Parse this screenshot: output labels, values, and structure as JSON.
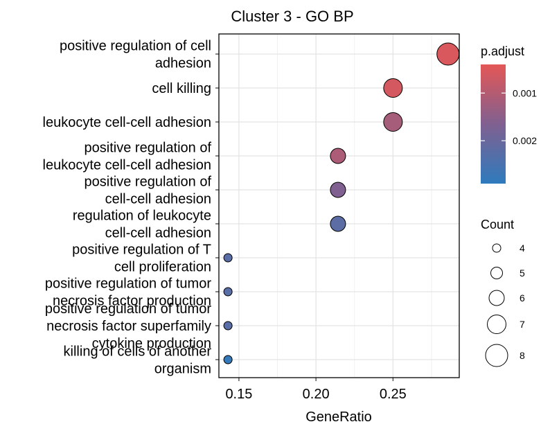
{
  "chart_data": {
    "type": "scatter",
    "title": "Cluster 3 - GO BP",
    "xlabel": "GeneRatio",
    "ylabel": "",
    "xlim": [
      0.137,
      0.293
    ],
    "xticks": [
      {
        "value": 0.15,
        "label": "0.15"
      },
      {
        "value": 0.2,
        "label": "0.20"
      },
      {
        "value": 0.25,
        "label": "0.25"
      }
    ],
    "grid": true,
    "points": [
      {
        "term": [
          "positive regulation of cell",
          "adhesion"
        ],
        "gene_ratio": 0.2857,
        "count": 8,
        "p_adjust": 0.00055
      },
      {
        "term": [
          "cell killing"
        ],
        "gene_ratio": 0.25,
        "count": 7,
        "p_adjust": 0.0006
      },
      {
        "term": [
          "leukocyte cell-cell adhesion"
        ],
        "gene_ratio": 0.25,
        "count": 7,
        "p_adjust": 0.00118
      },
      {
        "term": [
          "positive regulation of",
          "leukocyte cell-cell adhesion"
        ],
        "gene_ratio": 0.2143,
        "count": 6,
        "p_adjust": 0.0011
      },
      {
        "term": [
          "positive regulation of",
          "cell-cell adhesion"
        ],
        "gene_ratio": 0.2143,
        "count": 6,
        "p_adjust": 0.00165
      },
      {
        "term": [
          "regulation of leukocyte",
          "cell-cell adhesion"
        ],
        "gene_ratio": 0.2143,
        "count": 6,
        "p_adjust": 0.0022
      },
      {
        "term": [
          "positive regulation of T",
          "cell proliferation"
        ],
        "gene_ratio": 0.1429,
        "count": 4,
        "p_adjust": 0.00225
      },
      {
        "term": [
          "positive regulation of tumor",
          "necrosis factor production"
        ],
        "gene_ratio": 0.1429,
        "count": 4,
        "p_adjust": 0.00225
      },
      {
        "term": [
          "positive regulation of tumor",
          "necrosis factor superfamily",
          "cytokine production"
        ],
        "gene_ratio": 0.1429,
        "count": 4,
        "p_adjust": 0.00225
      },
      {
        "term": [
          "killing of cells of another",
          "organism"
        ],
        "gene_ratio": 0.1429,
        "count": 4,
        "p_adjust": 0.0028
      }
    ],
    "color_legend": {
      "title": "p.adjust",
      "range": [
        0.0004,
        0.0029
      ],
      "ticks": [
        {
          "value": 0.001,
          "label": "0.001"
        },
        {
          "value": 0.002,
          "label": "0.002"
        }
      ],
      "low_color": "#e45756",
      "high_color": "#2e7bbd",
      "placement": "right"
    },
    "size_legend": {
      "title": "Count",
      "values": [
        4,
        5,
        6,
        7,
        8
      ],
      "labels": [
        "4",
        "5",
        "6",
        "7",
        "8"
      ],
      "placement": "right"
    }
  }
}
